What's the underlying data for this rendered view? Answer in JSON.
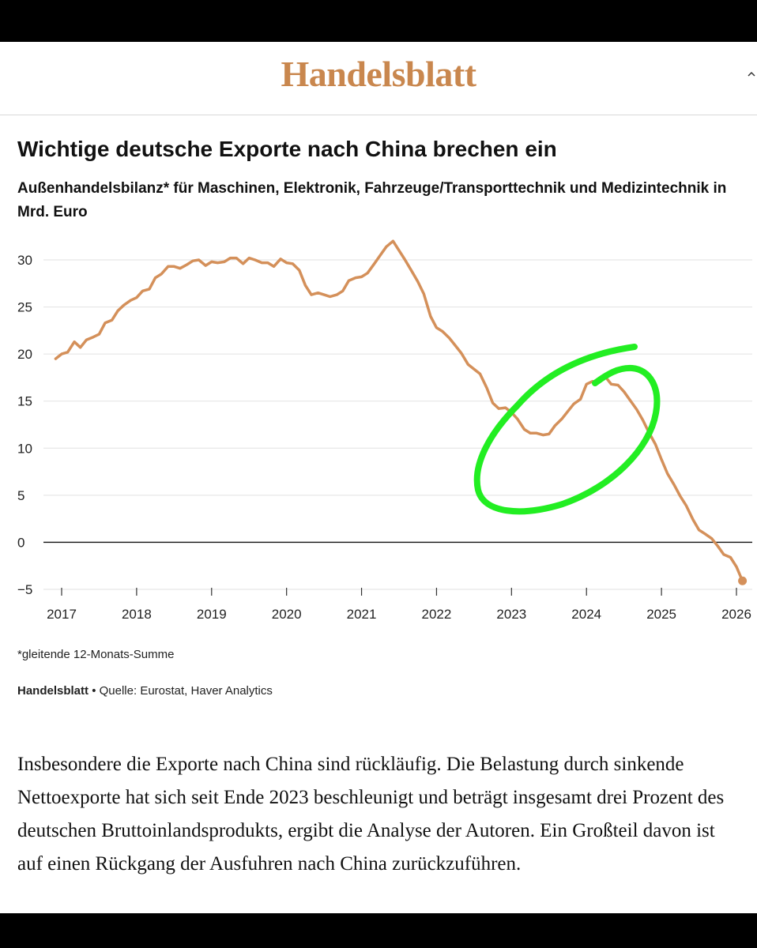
{
  "masthead": {
    "logo_text": "Handelsblatt"
  },
  "chart_data": {
    "type": "line",
    "title": "Wichtige deutsche Exporte nach China brechen ein",
    "subtitle": "Außenhandelsbilanz* für Maschinen, Elektronik, Fahrzeuge/Transporttechnik und Medizintechnik in Mrd. Euro",
    "xlabel": "",
    "ylabel": "",
    "xlim": [
      2016.9,
      2026.1
    ],
    "ylim": [
      -5,
      32
    ],
    "y_ticks": [
      30,
      25,
      20,
      15,
      10,
      5,
      0,
      -5
    ],
    "y_tick_labels": [
      "30",
      "25",
      "20",
      "15",
      "10",
      "5",
      "0",
      "−5"
    ],
    "x_ticks": [
      2017,
      2018,
      2019,
      2020,
      2021,
      2022,
      2023,
      2024,
      2025,
      2026
    ],
    "x_tick_labels": [
      "2017",
      "2018",
      "2019",
      "2020",
      "2021",
      "2022",
      "2023",
      "2024",
      "2025",
      "2026"
    ],
    "grid": true,
    "line_color": "#d4905a",
    "annotation_color": "#22ee22",
    "x": [
      2016.92,
      2017.0,
      2017.08,
      2017.17,
      2017.25,
      2017.33,
      2017.42,
      2017.5,
      2017.58,
      2017.67,
      2017.75,
      2017.83,
      2017.92,
      2018.0,
      2018.08,
      2018.17,
      2018.25,
      2018.33,
      2018.42,
      2018.5,
      2018.58,
      2018.67,
      2018.75,
      2018.83,
      2018.92,
      2019.0,
      2019.08,
      2019.17,
      2019.25,
      2019.33,
      2019.42,
      2019.5,
      2019.58,
      2019.67,
      2019.75,
      2019.83,
      2019.92,
      2020.0,
      2020.08,
      2020.17,
      2020.25,
      2020.33,
      2020.42,
      2020.5,
      2020.58,
      2020.67,
      2020.75,
      2020.83,
      2020.92,
      2021.0,
      2021.08,
      2021.17,
      2021.25,
      2021.33,
      2021.42,
      2021.5,
      2021.58,
      2021.67,
      2021.75,
      2021.83,
      2021.92,
      2022.0,
      2022.08,
      2022.17,
      2022.25,
      2022.33,
      2022.42,
      2022.5,
      2022.58,
      2022.67,
      2022.75,
      2022.83,
      2022.92,
      2023.0,
      2023.08,
      2023.17,
      2023.25,
      2023.33,
      2023.42,
      2023.5,
      2023.58,
      2023.67,
      2023.75,
      2023.83,
      2023.92,
      2024.0,
      2024.08,
      2024.17,
      2024.25,
      2024.33,
      2024.42,
      2024.5,
      2024.58,
      2024.67,
      2024.75,
      2024.83,
      2024.92,
      2025.0,
      2025.08,
      2025.17,
      2025.25,
      2025.33,
      2025.42,
      2025.5,
      2025.58,
      2025.67,
      2025.75,
      2025.83,
      2025.92,
      2026.0,
      2026.08
    ],
    "y": [
      19.5,
      20.0,
      20.2,
      21.3,
      20.7,
      21.5,
      21.8,
      22.1,
      23.3,
      23.6,
      24.6,
      25.2,
      25.7,
      26.0,
      26.7,
      26.9,
      28.1,
      28.5,
      29.3,
      29.3,
      29.1,
      29.5,
      29.9,
      30.0,
      29.4,
      29.8,
      29.7,
      29.8,
      30.2,
      30.2,
      29.6,
      30.2,
      30.0,
      29.7,
      29.7,
      29.3,
      30.1,
      29.7,
      29.6,
      28.9,
      27.3,
      26.3,
      26.5,
      26.3,
      26.1,
      26.3,
      26.7,
      27.8,
      28.1,
      28.2,
      28.6,
      29.6,
      30.5,
      31.4,
      32.0,
      31.0,
      30.0,
      28.8,
      27.7,
      26.4,
      24.0,
      22.8,
      22.4,
      21.7,
      20.9,
      20.1,
      18.9,
      18.4,
      17.9,
      16.4,
      14.8,
      14.2,
      14.3,
      13.8,
      13.1,
      12.0,
      11.6,
      11.6,
      11.4,
      11.5,
      12.4,
      13.1,
      13.9,
      14.7,
      15.2,
      16.8,
      17.1,
      17.0,
      17.6,
      16.8,
      16.7,
      16.0,
      15.1,
      14.1,
      13.0,
      11.7,
      10.4,
      8.8,
      7.3,
      6.1,
      4.9,
      3.9,
      2.4,
      1.3,
      0.9,
      0.4,
      -0.4,
      -1.3,
      -1.6,
      -2.6,
      -4.1
    ],
    "end_marker": true
  },
  "footnote": "*gleitende 12-Monats-Summe",
  "source": {
    "brand": "Handelsblatt",
    "bullet": "•",
    "text": "Quelle: Eurostat, Haver Analytics"
  },
  "article": {
    "paragraph": "Insbesondere die Exporte nach China sind rückläufig. Die Belastung durch sinkende Nettoexporte hat sich seit Ende 2023 beschleunigt und beträgt insgesamt drei Prozent des deutschen Bruttoinlandsprodukts, ergibt die Analyse der Autoren. Ein Großteil davon ist auf einen Rückgang der Ausfuhren nach China zurückzuführen."
  }
}
